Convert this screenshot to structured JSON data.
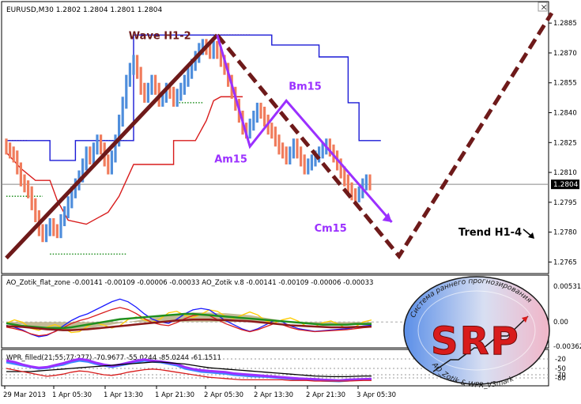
{
  "chart_data": [
    {
      "type": "line",
      "panel": "main",
      "title": "EURUSD,M30  1.2802 1.2804 1.2801 1.2804",
      "current_price": "1.2804",
      "ylim": [
        1.276,
        1.2895
      ],
      "y_ticks": [
        "1.2885",
        "1.2870",
        "1.2855",
        "1.2840",
        "1.2825",
        "1.2810",
        "1.2795",
        "1.2780",
        "1.2765"
      ],
      "x_ticks": [
        "29 Mar 2013",
        "1 Apr 05:30",
        "1 Apr 13:30",
        "1 Apr 21:30",
        "2 Apr 05:30",
        "2 Apr 13:30",
        "2 Apr 21:30",
        "3 Apr 05:30"
      ],
      "bar_colors": {
        "up": "#4f8edc",
        "down": "#f07c5c"
      },
      "close_series": [
        1.2822,
        1.282,
        1.2818,
        1.2812,
        1.2806,
        1.2803,
        1.28,
        1.2794,
        1.2788,
        1.2781,
        1.2778,
        1.2781,
        1.2784,
        1.2781,
        1.278,
        1.2786,
        1.279,
        1.2795,
        1.28,
        1.2804,
        1.2808,
        1.2814,
        1.282,
        1.2817,
        1.2822,
        1.2826,
        1.2822,
        1.2816,
        1.2812,
        1.2818,
        1.2826,
        1.2836,
        1.2845,
        1.2856,
        1.2862,
        1.2866,
        1.286,
        1.2852,
        1.2848,
        1.2852,
        1.2856,
        1.2852,
        1.2846,
        1.2848,
        1.2852,
        1.285,
        1.2846,
        1.2849,
        1.2852,
        1.2856,
        1.286,
        1.2864,
        1.2868,
        1.2872,
        1.2874,
        1.2872,
        1.287,
        1.2873,
        1.287,
        1.2866,
        1.2862,
        1.2856,
        1.285,
        1.2844,
        1.2838,
        1.2832,
        1.283,
        1.2834,
        1.2838,
        1.2842,
        1.284,
        1.2836,
        1.2832,
        1.283,
        1.2826,
        1.2822,
        1.282,
        1.2817,
        1.282,
        1.2824,
        1.282,
        1.2816,
        1.2812,
        1.2814,
        1.2816,
        1.2818,
        1.282,
        1.2822,
        1.2824,
        1.2821,
        1.2818,
        1.2814,
        1.281,
        1.2806,
        1.2802,
        1.2799,
        1.2798,
        1.28,
        1.2804,
        1.2806,
        1.2804
      ],
      "upper_channel": [
        [
          0,
          1.2826
        ],
        [
          12,
          1.2826
        ],
        [
          12,
          1.2816
        ],
        [
          19,
          1.2816
        ],
        [
          19,
          1.2826
        ],
        [
          35,
          1.2826
        ],
        [
          35,
          1.2879
        ],
        [
          73,
          1.2879
        ],
        [
          73,
          1.2874
        ],
        [
          86,
          1.2874
        ],
        [
          86,
          1.2868
        ],
        [
          94,
          1.2868
        ],
        [
          94,
          1.2845
        ],
        [
          97,
          1.2845
        ],
        [
          97,
          1.2826
        ],
        [
          103,
          1.2826
        ]
      ],
      "middle_line": [
        [
          0,
          1.282
        ],
        [
          4,
          1.2812
        ],
        [
          8,
          1.2806
        ],
        [
          12,
          1.2806
        ],
        [
          14,
          1.2796
        ],
        [
          17,
          1.2786
        ],
        [
          22,
          1.2784
        ],
        [
          28,
          1.279
        ],
        [
          31,
          1.2798
        ],
        [
          33,
          1.2806
        ],
        [
          35,
          1.2814
        ],
        [
          46,
          1.2814
        ],
        [
          46,
          1.2826
        ],
        [
          52,
          1.2826
        ],
        [
          55,
          1.2836
        ],
        [
          57,
          1.2846
        ],
        [
          59,
          1.2848
        ],
        [
          65,
          1.2848
        ]
      ],
      "lower_dots": [
        {
          "from": 0,
          "to": 6,
          "price": 1.2826,
          "color": "#d81c1c"
        },
        {
          "from": 0,
          "to": 10,
          "price": 1.2798,
          "color": "#1f8f1f"
        },
        {
          "from": 12,
          "to": 33,
          "price": 1.2769,
          "color": "#1f8f1f"
        },
        {
          "from": 26,
          "to": 33,
          "price": 1.2826,
          "color": "#1f8f1f"
        },
        {
          "from": 46,
          "to": 54,
          "price": 1.2845,
          "color": "#1f8f1f"
        },
        {
          "from": 56,
          "to": 67,
          "price": 1.2879,
          "color": "#d81c1c"
        }
      ],
      "wave_annotations": [
        {
          "label": "Wave H1-2",
          "color": "#6e1a1a"
        },
        {
          "label": "Bm15",
          "color": "#9b30ff"
        },
        {
          "label": "Am15",
          "color": "#9b30ff"
        },
        {
          "label": "Cm15",
          "color": "#9b30ff"
        },
        {
          "label": "Trend H1-4",
          "color": "#000000"
        }
      ],
      "wave_paths": {
        "solid_uptrend": [
          [
            0,
            1.2767
          ],
          [
            58,
            1.2879
          ]
        ],
        "dashed_projection": [
          [
            58,
            1.2879
          ],
          [
            108,
            1.2768
          ],
          [
            150,
            1.289
          ]
        ],
        "purple_abc": [
          [
            58,
            1.2879
          ],
          [
            67,
            1.2823
          ],
          [
            77,
            1.2846
          ],
          [
            106,
            1.2785
          ]
        ]
      }
    },
    {
      "type": "area",
      "panel": "ao",
      "title": "AO_Zotik_flat_zone -0.00141 -0.00109 -0.00006 -0.00033  AO_Zotik v.8 -0.00141 -0.00109 -0.00006 -0.00033",
      "y_ticks": [
        "0.00531",
        "0.00",
        "-0.00362"
      ],
      "ylim": [
        -0.00362,
        0.00531
      ],
      "zone_series": [
        -0.0002,
        -0.0003,
        -0.0004,
        -0.0006,
        -0.0008,
        -0.001,
        -0.0011,
        -0.0012,
        -0.0012,
        -0.0011,
        -0.001,
        -0.0008,
        -0.0006,
        -0.0004,
        -0.0002,
        0.0,
        0.0002,
        0.0004,
        0.0006,
        0.0008,
        0.001,
        0.0012,
        0.0013,
        0.0014,
        0.0014,
        0.0014,
        0.0013,
        0.0013,
        0.0012,
        0.0011,
        0.001,
        0.0008,
        0.0006,
        0.0004,
        0.0002,
        0.0,
        -0.0001,
        -0.0002,
        -0.0003,
        -0.0004,
        -0.0005,
        -0.0005,
        -0.0005,
        -0.0004,
        -0.0004,
        -0.0003
      ],
      "signal_series": [
        -0.0005,
        -0.0008,
        -0.0012,
        -0.0018,
        -0.0022,
        -0.002,
        -0.0014,
        -0.0006,
        0.0002,
        0.0008,
        0.0012,
        0.0018,
        0.0024,
        0.003,
        0.0034,
        0.003,
        0.0022,
        0.0012,
        0.0004,
        0.0,
        -0.0002,
        0.0004,
        0.0012,
        0.0018,
        0.002,
        0.0018,
        0.001,
        0.0002,
        -0.0004,
        -0.001,
        -0.0014,
        -0.001,
        -0.0004,
        0.0002,
        0.0,
        -0.0006,
        -0.001,
        -0.0012,
        -0.0014,
        -0.0013,
        -0.0012,
        -0.0011,
        -0.001,
        -0.0008,
        -0.0006,
        -0.0005
      ],
      "ma_series": [
        -0.0002,
        -0.0004,
        -0.0006,
        -0.0007,
        -0.0008,
        -0.0009,
        -0.0009,
        -0.0009,
        -0.0008,
        -0.0006,
        -0.0004,
        -0.0002,
        0.0,
        0.0002,
        0.0004,
        0.0005,
        0.0006,
        0.0007,
        0.0008,
        0.0009,
        0.001,
        0.0011,
        0.0012,
        0.0012,
        0.0011,
        0.001,
        0.0009,
        0.0008,
        0.0007,
        0.0006,
        0.0005,
        0.0004,
        0.0003,
        0.0002,
        0.0001,
        0.0,
        -0.0001,
        -0.0002,
        -0.0003,
        -0.0004,
        -0.0004,
        -0.0004,
        -0.0004,
        -0.0003,
        -0.0003,
        -0.0003
      ],
      "colors": {
        "zone_fill": "#bdb38a",
        "zone_line": "#8b1a1a",
        "signal": "#d81c1c",
        "fast": "#1a1aff",
        "slow": "#ffcc00",
        "flat": "#1f8f1f"
      }
    },
    {
      "type": "line",
      "panel": "wpr",
      "title": "WPR_filled(21;55;77;277) -70.9677 -55.0244 -85.0244 -61.1511",
      "y_ticks": [
        "-20",
        "-50",
        "-70",
        "-80"
      ],
      "ylim": [
        -100,
        0
      ],
      "levels": [
        -20,
        -50,
        -70,
        -80
      ],
      "series": [
        {
          "name": "",
          "color": "#3a8dff",
          "values": [
            -30,
            -35,
            -40,
            -45,
            -50,
            -48,
            -42,
            -38,
            -30,
            -25,
            -28,
            -35,
            -40,
            -45,
            -40,
            -35,
            -30,
            -25,
            -28,
            -30,
            -35,
            -40,
            -50,
            -55,
            -60,
            -62,
            -64,
            -66,
            -70,
            -72,
            -74,
            -75,
            -76,
            -78,
            -80,
            -82,
            -84,
            -85,
            -86,
            -88,
            -89,
            -90,
            -88,
            -86,
            -85,
            -84
          ]
        },
        {
          "name": "",
          "color": "#9b30ff",
          "values": [
            -25,
            -30,
            -38,
            -44,
            -48,
            -46,
            -40,
            -34,
            -26,
            -20,
            -24,
            -32,
            -38,
            -42,
            -38,
            -32,
            -26,
            -22,
            -26,
            -28,
            -32,
            -36,
            -46,
            -52,
            -56,
            -58,
            -60,
            -62,
            -66,
            -68,
            -70,
            -72,
            -74,
            -76,
            -78,
            -80,
            -82,
            -83,
            -84,
            -86,
            -87,
            -88,
            -86,
            -85,
            -84,
            -83
          ]
        },
        {
          "name": "",
          "color": "#000000",
          "values": [
            -60,
            -60,
            -60,
            -60,
            -58,
            -56,
            -54,
            -52,
            -50,
            -48,
            -46,
            -44,
            -42,
            -40,
            -38,
            -36,
            -34,
            -32,
            -30,
            -30,
            -32,
            -34,
            -36,
            -40,
            -44,
            -48,
            -50,
            -52,
            -54,
            -56,
            -58,
            -60,
            -62,
            -64,
            -66,
            -68,
            -70,
            -72,
            -74,
            -75,
            -76,
            -76,
            -76,
            -75,
            -74,
            -74
          ]
        },
        {
          "name": "",
          "color": "#d81c1c",
          "values": [
            -50,
            -55,
            -60,
            -65,
            -70,
            -75,
            -72,
            -68,
            -62,
            -58,
            -60,
            -65,
            -70,
            -72,
            -68,
            -62,
            -58,
            -54,
            -52,
            -54,
            -58,
            -62,
            -66,
            -70,
            -74,
            -78,
            -80,
            -82,
            -84,
            -86,
            -86,
            -86,
            -86,
            -86,
            -86,
            -88,
            -88,
            -88,
            -90,
            -90,
            -90,
            -90,
            -90,
            -89,
            -88,
            -88
          ]
        }
      ]
    }
  ],
  "logo": {
    "big_text": "SRP",
    "top_arc": "Система раннего прогнозирования",
    "bottom_arc": "AO_Zotik & WPR_V3mark",
    "colors": {
      "ring": "#1a1a1a",
      "left": "#5b8fe8",
      "right": "#f1b6c8",
      "letters": "#d81c1c",
      "arrow": "#d81c1c"
    }
  },
  "ui": {
    "close_glyph": "×"
  }
}
